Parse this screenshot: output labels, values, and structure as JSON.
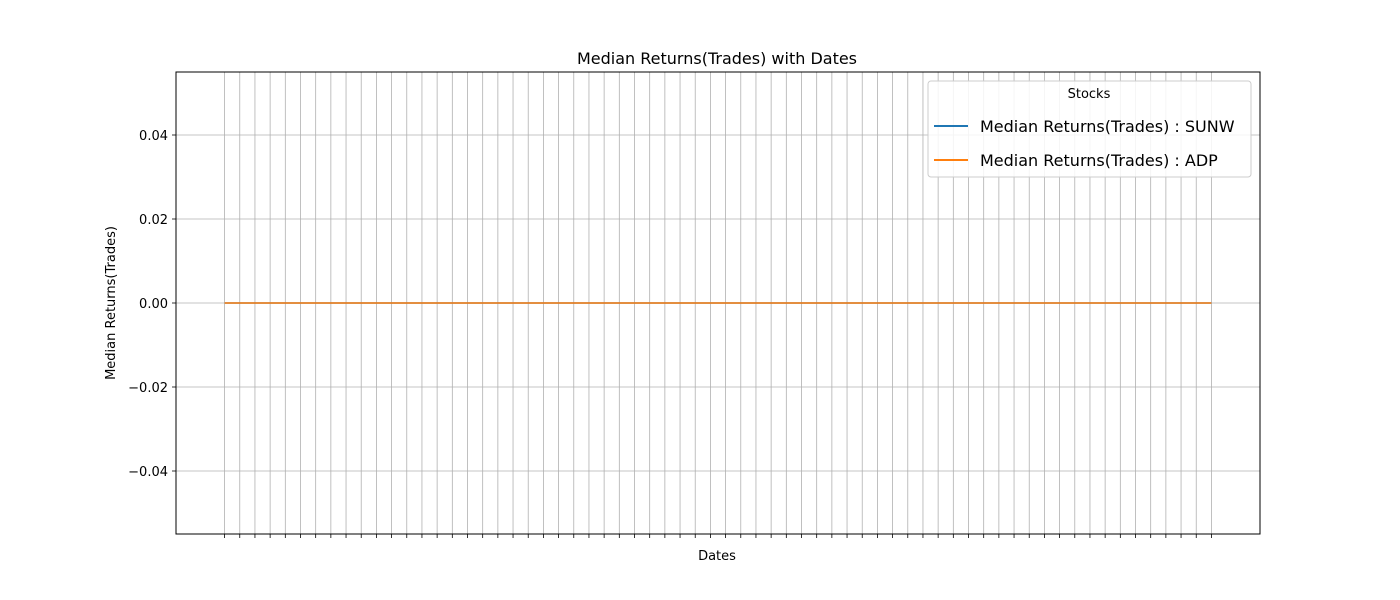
{
  "chart_data": {
    "type": "line",
    "title": "Median Returns(Trades) with Dates",
    "xlabel": "Dates",
    "ylabel": "Median Returns(Trades)",
    "x_count": 66,
    "xlim": [
      -3.2,
      68.2
    ],
    "ylim": [
      -0.055,
      0.055
    ],
    "yticks": [
      0.04,
      0.02,
      0.0,
      -0.02,
      -0.04
    ],
    "ytick_labels": [
      "0.04",
      "0.02",
      "0.00",
      "−0.02",
      "−0.04"
    ],
    "grid": true,
    "legend": {
      "title": "Stocks",
      "placement": "top-right"
    },
    "series": [
      {
        "name": "Median Returns(Trades) : SUNW",
        "color": "#1f77b4",
        "values": [
          0,
          0,
          0,
          0,
          0,
          0,
          0,
          0,
          0,
          0,
          0,
          0,
          0,
          0,
          0,
          0,
          0,
          0,
          0,
          0,
          0,
          0,
          0,
          0,
          0,
          0,
          0,
          0,
          0,
          0,
          0,
          0,
          0,
          0,
          0,
          0,
          0,
          0,
          0,
          0,
          0,
          0,
          0,
          0,
          0,
          0,
          0,
          0,
          0,
          0,
          0,
          0,
          0,
          0,
          0,
          0,
          0,
          0,
          0,
          0,
          0,
          0,
          0,
          0,
          0,
          0
        ]
      },
      {
        "name": "Median Returns(Trades) : ADP",
        "color": "#ff7f0e",
        "values": [
          0,
          0,
          0,
          0,
          0,
          0,
          0,
          0,
          0,
          0,
          0,
          0,
          0,
          0,
          0,
          0,
          0,
          0,
          0,
          0,
          0,
          0,
          0,
          0,
          0,
          0,
          0,
          0,
          0,
          0,
          0,
          0,
          0,
          0,
          0,
          0,
          0,
          0,
          0,
          0,
          0,
          0,
          0,
          0,
          0,
          0,
          0,
          0,
          0,
          0,
          0,
          0,
          0,
          0,
          0,
          0,
          0,
          0,
          0,
          0,
          0,
          0,
          0,
          0,
          0,
          0
        ]
      }
    ]
  }
}
